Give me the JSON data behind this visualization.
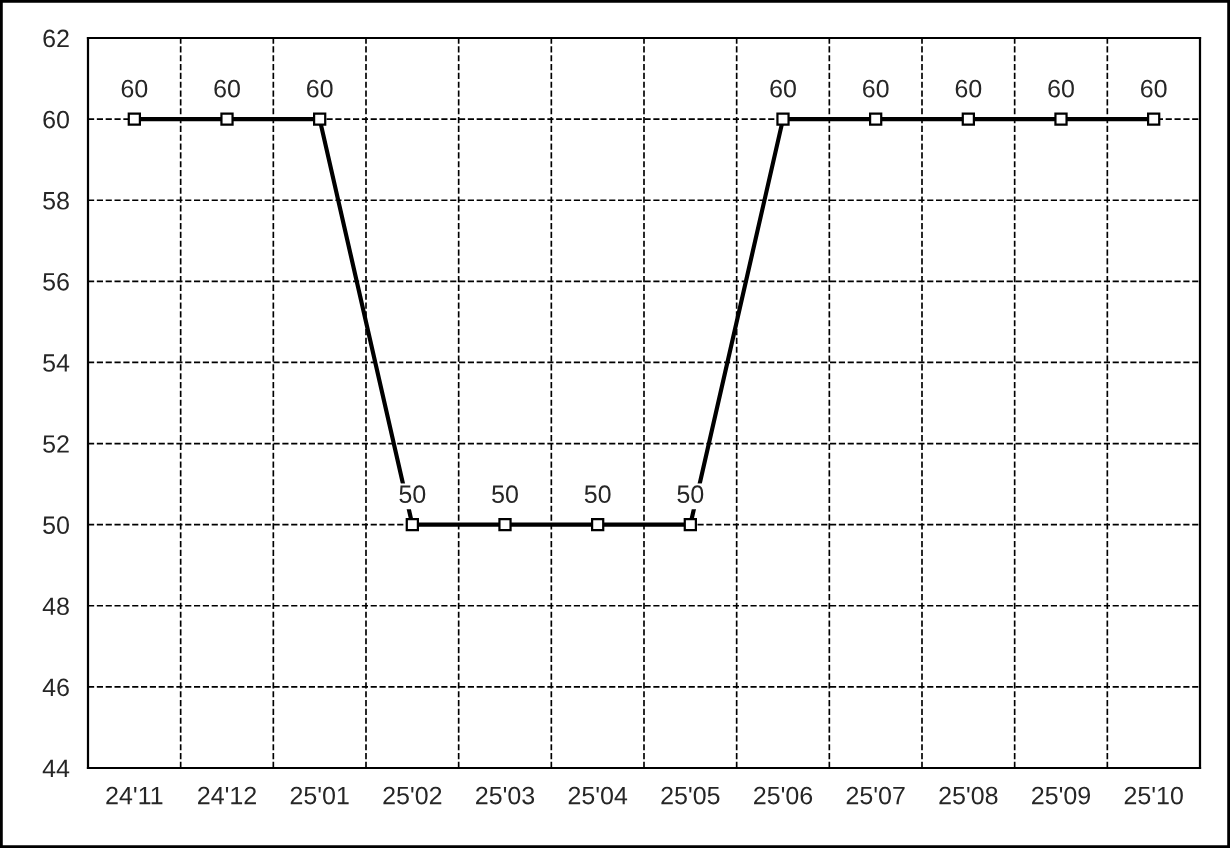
{
  "chart_data": {
    "type": "line",
    "categories": [
      "24'11",
      "24'12",
      "25'01",
      "25'02",
      "25'03",
      "25'04",
      "25'05",
      "25'06",
      "25'07",
      "25'08",
      "25'09",
      "25'10"
    ],
    "series": [
      {
        "color": "#000000",
        "values": [
          60,
          60,
          60,
          50,
          50,
          50,
          50,
          60,
          60,
          60,
          60,
          60
        ]
      }
    ],
    "ylim": [
      44,
      62
    ],
    "yticks": [
      44,
      46,
      48,
      50,
      52,
      54,
      56,
      58,
      60,
      62
    ],
    "grid": true,
    "marker": "square",
    "line_style": "solid",
    "data_labels": true
  }
}
